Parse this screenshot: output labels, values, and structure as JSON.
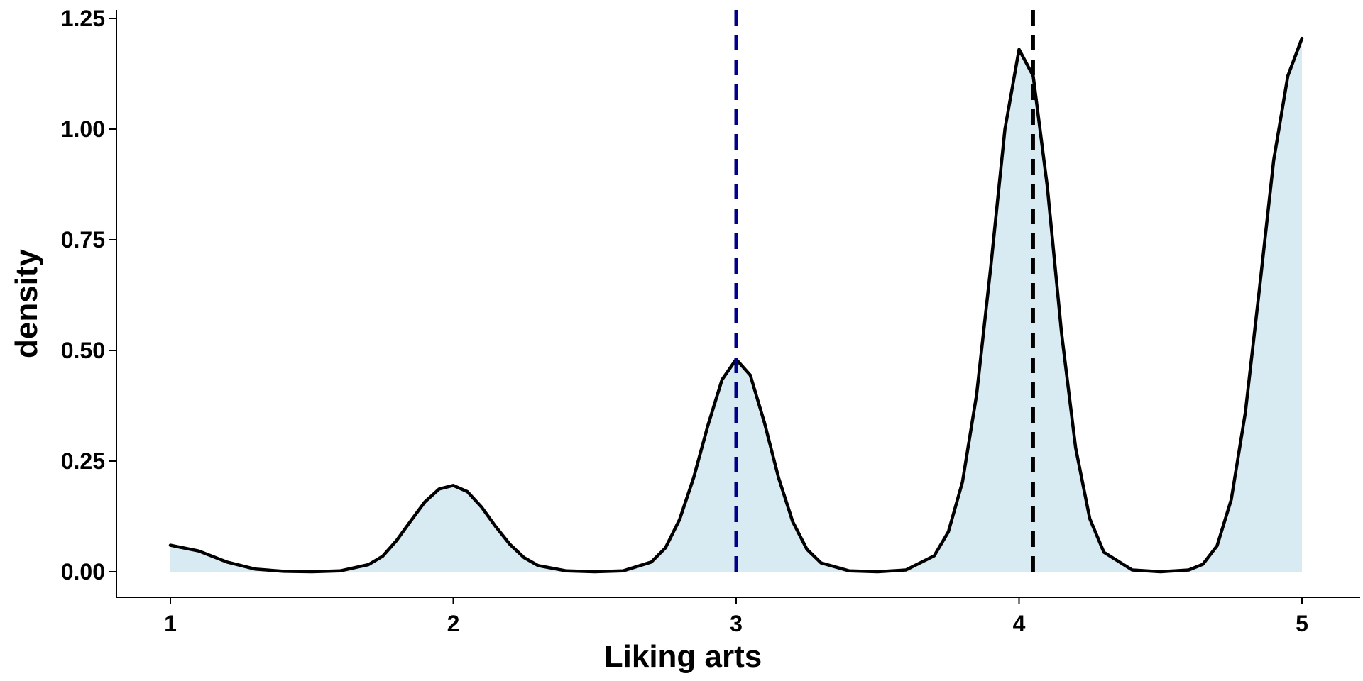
{
  "chart_data": {
    "type": "area",
    "title": "",
    "xlabel": "Liking arts",
    "ylabel": "density",
    "xlim": [
      0.8,
      5.2
    ],
    "ylim": [
      -0.06,
      1.26
    ],
    "x_ticks": [
      1,
      2,
      3,
      4,
      5
    ],
    "x_tick_labels": [
      "1",
      "2",
      "3",
      "4",
      "5"
    ],
    "y_ticks": [
      0,
      0.25,
      0.5,
      0.75,
      1.0,
      1.25
    ],
    "y_tick_labels": [
      "0.00",
      "0.25",
      "0.50",
      "0.75",
      "1.00",
      "1.25"
    ],
    "grid": false,
    "legend": "none",
    "fill_color": "#d8ebf2",
    "line_color": "#000000",
    "density_curve": {
      "x": [
        1.0,
        1.1,
        1.2,
        1.3,
        1.4,
        1.5,
        1.6,
        1.7,
        1.75,
        1.8,
        1.85,
        1.9,
        1.95,
        2.0,
        2.05,
        2.1,
        2.15,
        2.2,
        2.25,
        2.3,
        2.4,
        2.5,
        2.6,
        2.7,
        2.75,
        2.8,
        2.85,
        2.9,
        2.95,
        3.0,
        3.05,
        3.1,
        3.15,
        3.2,
        3.25,
        3.3,
        3.4,
        3.5,
        3.6,
        3.7,
        3.75,
        3.8,
        3.85,
        3.9,
        3.95,
        4.0,
        4.05,
        4.1,
        4.15,
        4.2,
        4.25,
        4.3,
        4.4,
        4.5,
        4.6,
        4.65,
        4.7,
        4.75,
        4.8,
        4.85,
        4.9,
        4.95,
        5.0
      ],
      "y": [
        0.06,
        0.047,
        0.022,
        0.006,
        0.001,
        0.0,
        0.002,
        0.016,
        0.035,
        0.071,
        0.115,
        0.158,
        0.187,
        0.195,
        0.181,
        0.146,
        0.102,
        0.062,
        0.032,
        0.014,
        0.002,
        0.0,
        0.002,
        0.022,
        0.054,
        0.118,
        0.213,
        0.33,
        0.434,
        0.48,
        0.444,
        0.337,
        0.212,
        0.113,
        0.051,
        0.02,
        0.002,
        0.0,
        0.004,
        0.036,
        0.09,
        0.203,
        0.4,
        0.688,
        1.0,
        1.18,
        1.12,
        0.87,
        0.54,
        0.28,
        0.12,
        0.044,
        0.004,
        0.0,
        0.004,
        0.017,
        0.059,
        0.163,
        0.36,
        0.64,
        0.93,
        1.12,
        1.205
      ]
    },
    "vlines": [
      {
        "x": 3.0,
        "color": "#00008b",
        "style": "dashed"
      },
      {
        "x": 4.05,
        "color": "#000000",
        "style": "dashed"
      }
    ]
  }
}
